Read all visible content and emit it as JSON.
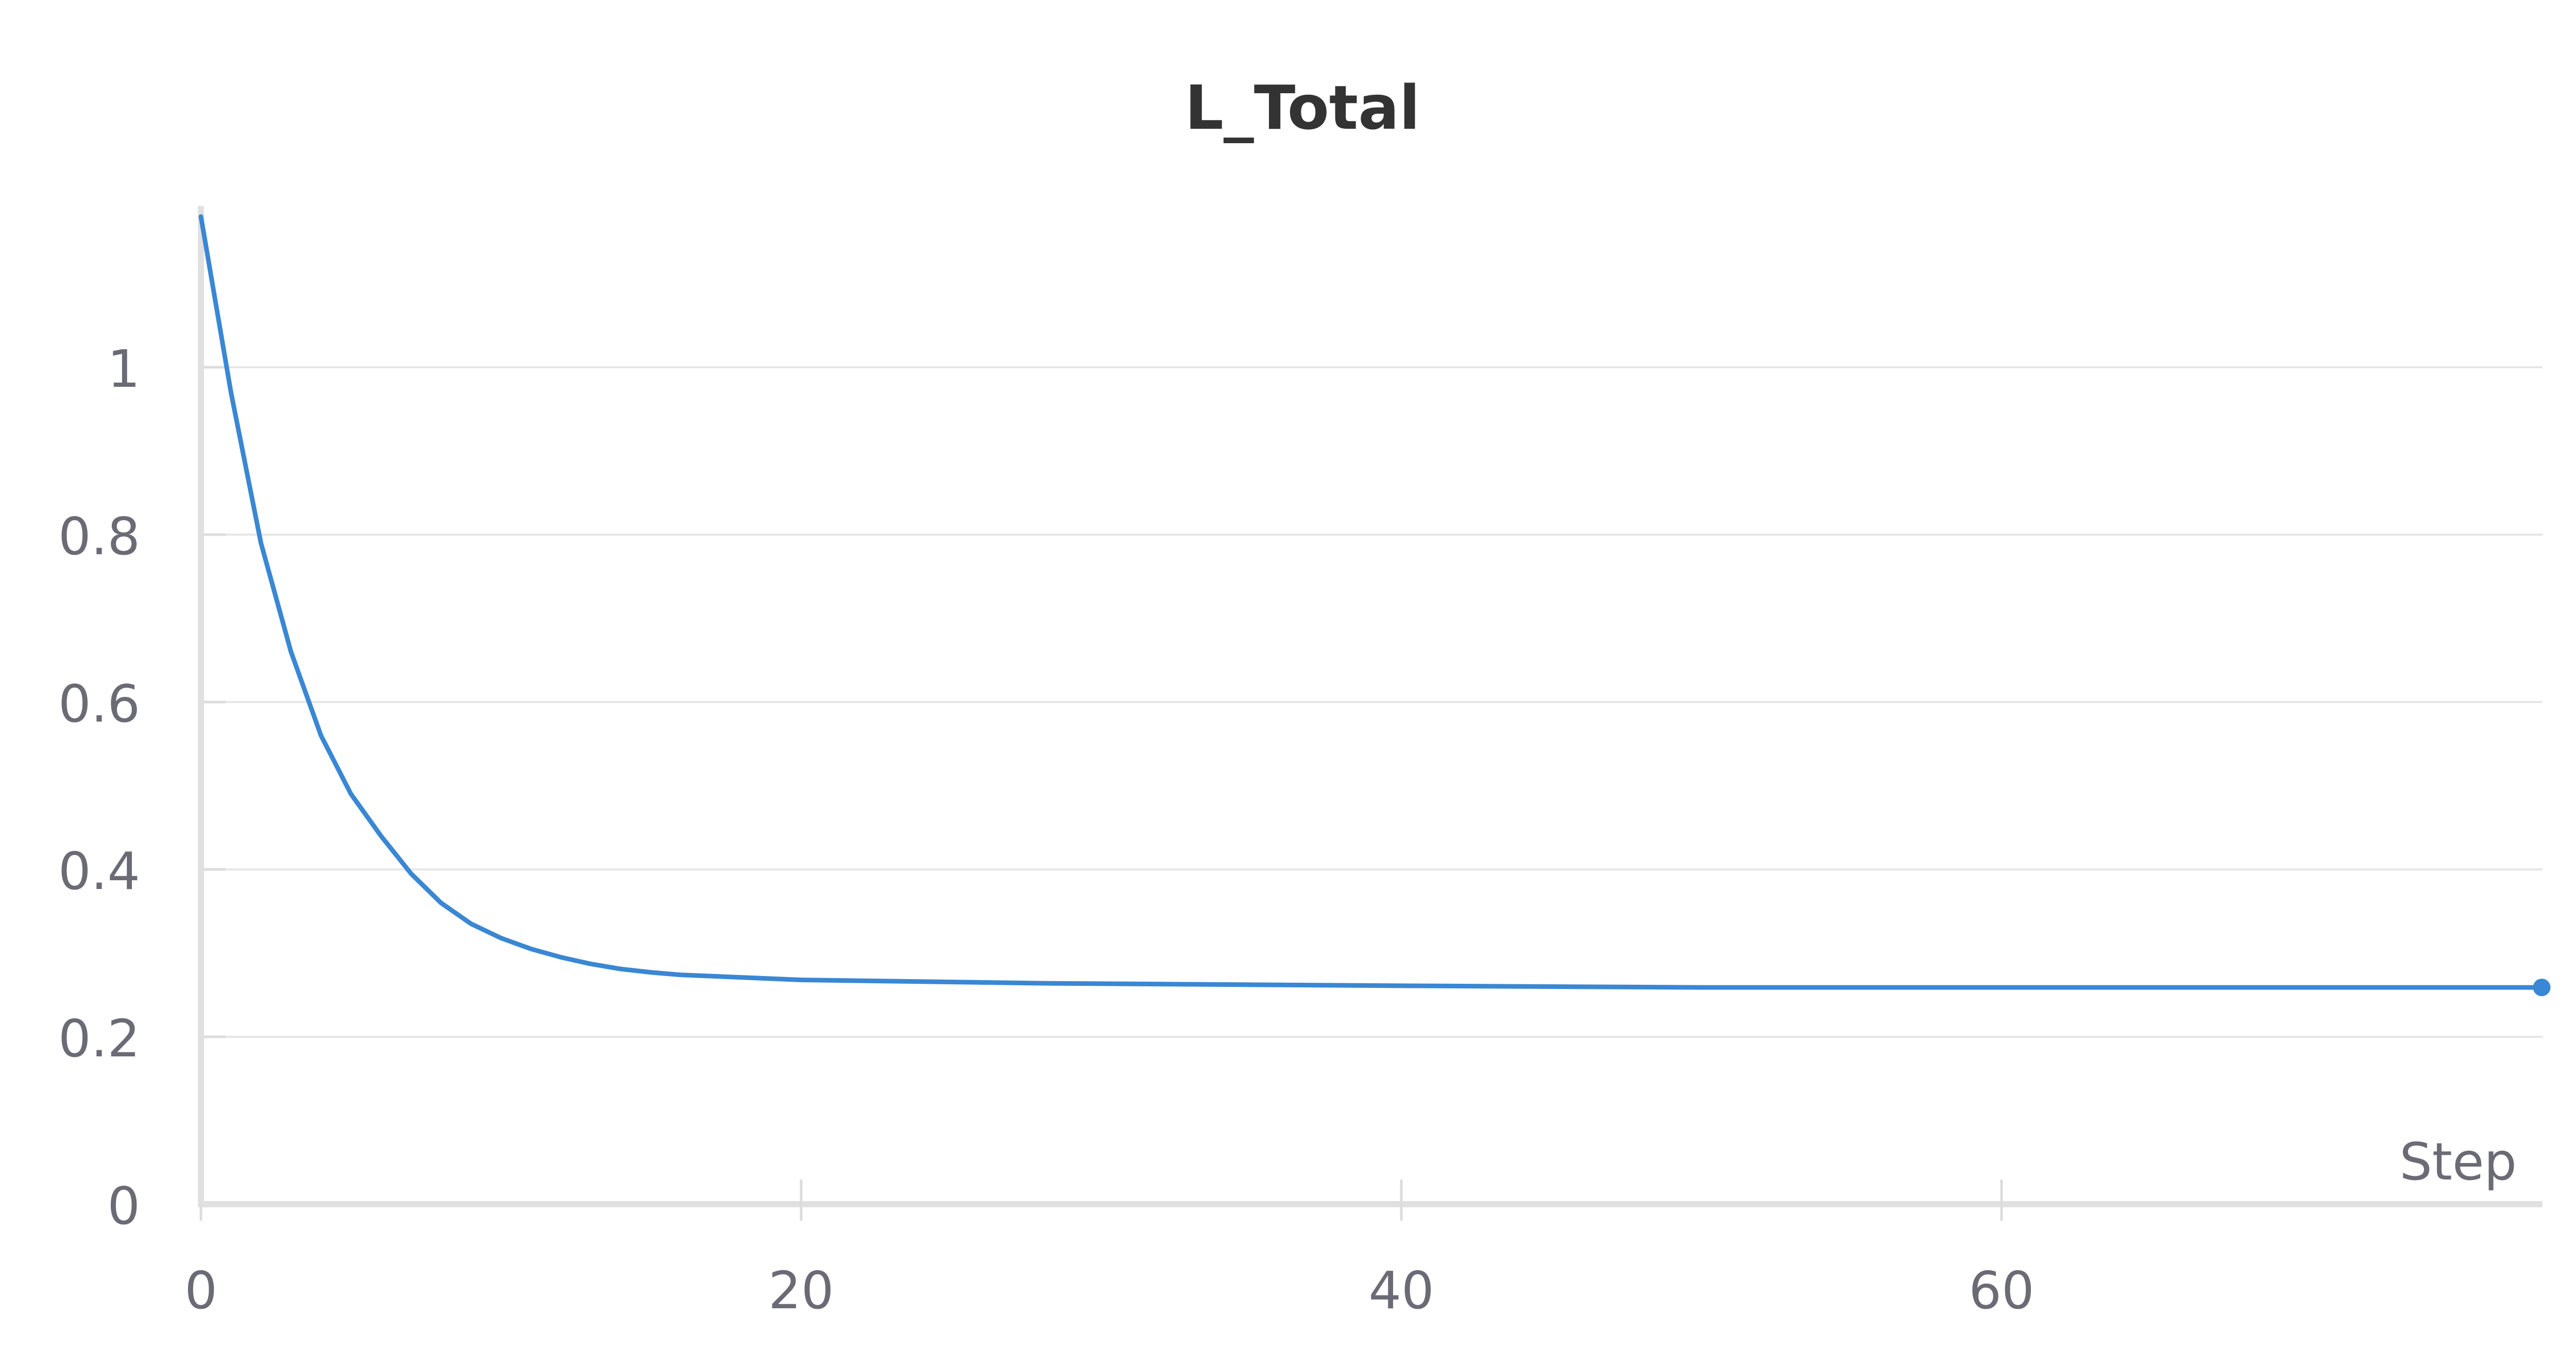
{
  "chart_data": {
    "type": "line",
    "title": "L_Total",
    "xlabel": "Step",
    "ylabel": "",
    "xlim": [
      0,
      78
    ],
    "ylim": [
      0,
      1.2
    ],
    "x_ticks": [
      0,
      20,
      40,
      60
    ],
    "y_ticks": [
      0,
      0.2,
      0.4,
      0.6,
      0.8,
      1
    ],
    "x_tick_labels": [
      "0",
      "20",
      "40",
      "60"
    ],
    "y_tick_labels": [
      "0",
      "0.2",
      "0.4",
      "0.6",
      "0.8",
      "1"
    ],
    "grid": "horizontal",
    "legend": "none",
    "series": [
      {
        "color": "#3a87d4",
        "x": [
          0,
          1,
          2,
          3,
          4,
          5,
          6,
          7,
          8,
          9,
          10,
          11,
          12,
          13,
          14,
          15,
          16,
          18,
          20,
          24,
          28,
          32,
          36,
          40,
          45,
          50,
          55,
          60,
          65,
          70,
          74,
          78
        ],
        "y": [
          1.18,
          0.97,
          0.79,
          0.66,
          0.56,
          0.49,
          0.44,
          0.395,
          0.36,
          0.335,
          0.318,
          0.305,
          0.295,
          0.287,
          0.281,
          0.277,
          0.274,
          0.271,
          0.268,
          0.266,
          0.264,
          0.263,
          0.262,
          0.261,
          0.26,
          0.259,
          0.259,
          0.259,
          0.259,
          0.259,
          0.259,
          0.259
        ]
      }
    ]
  }
}
